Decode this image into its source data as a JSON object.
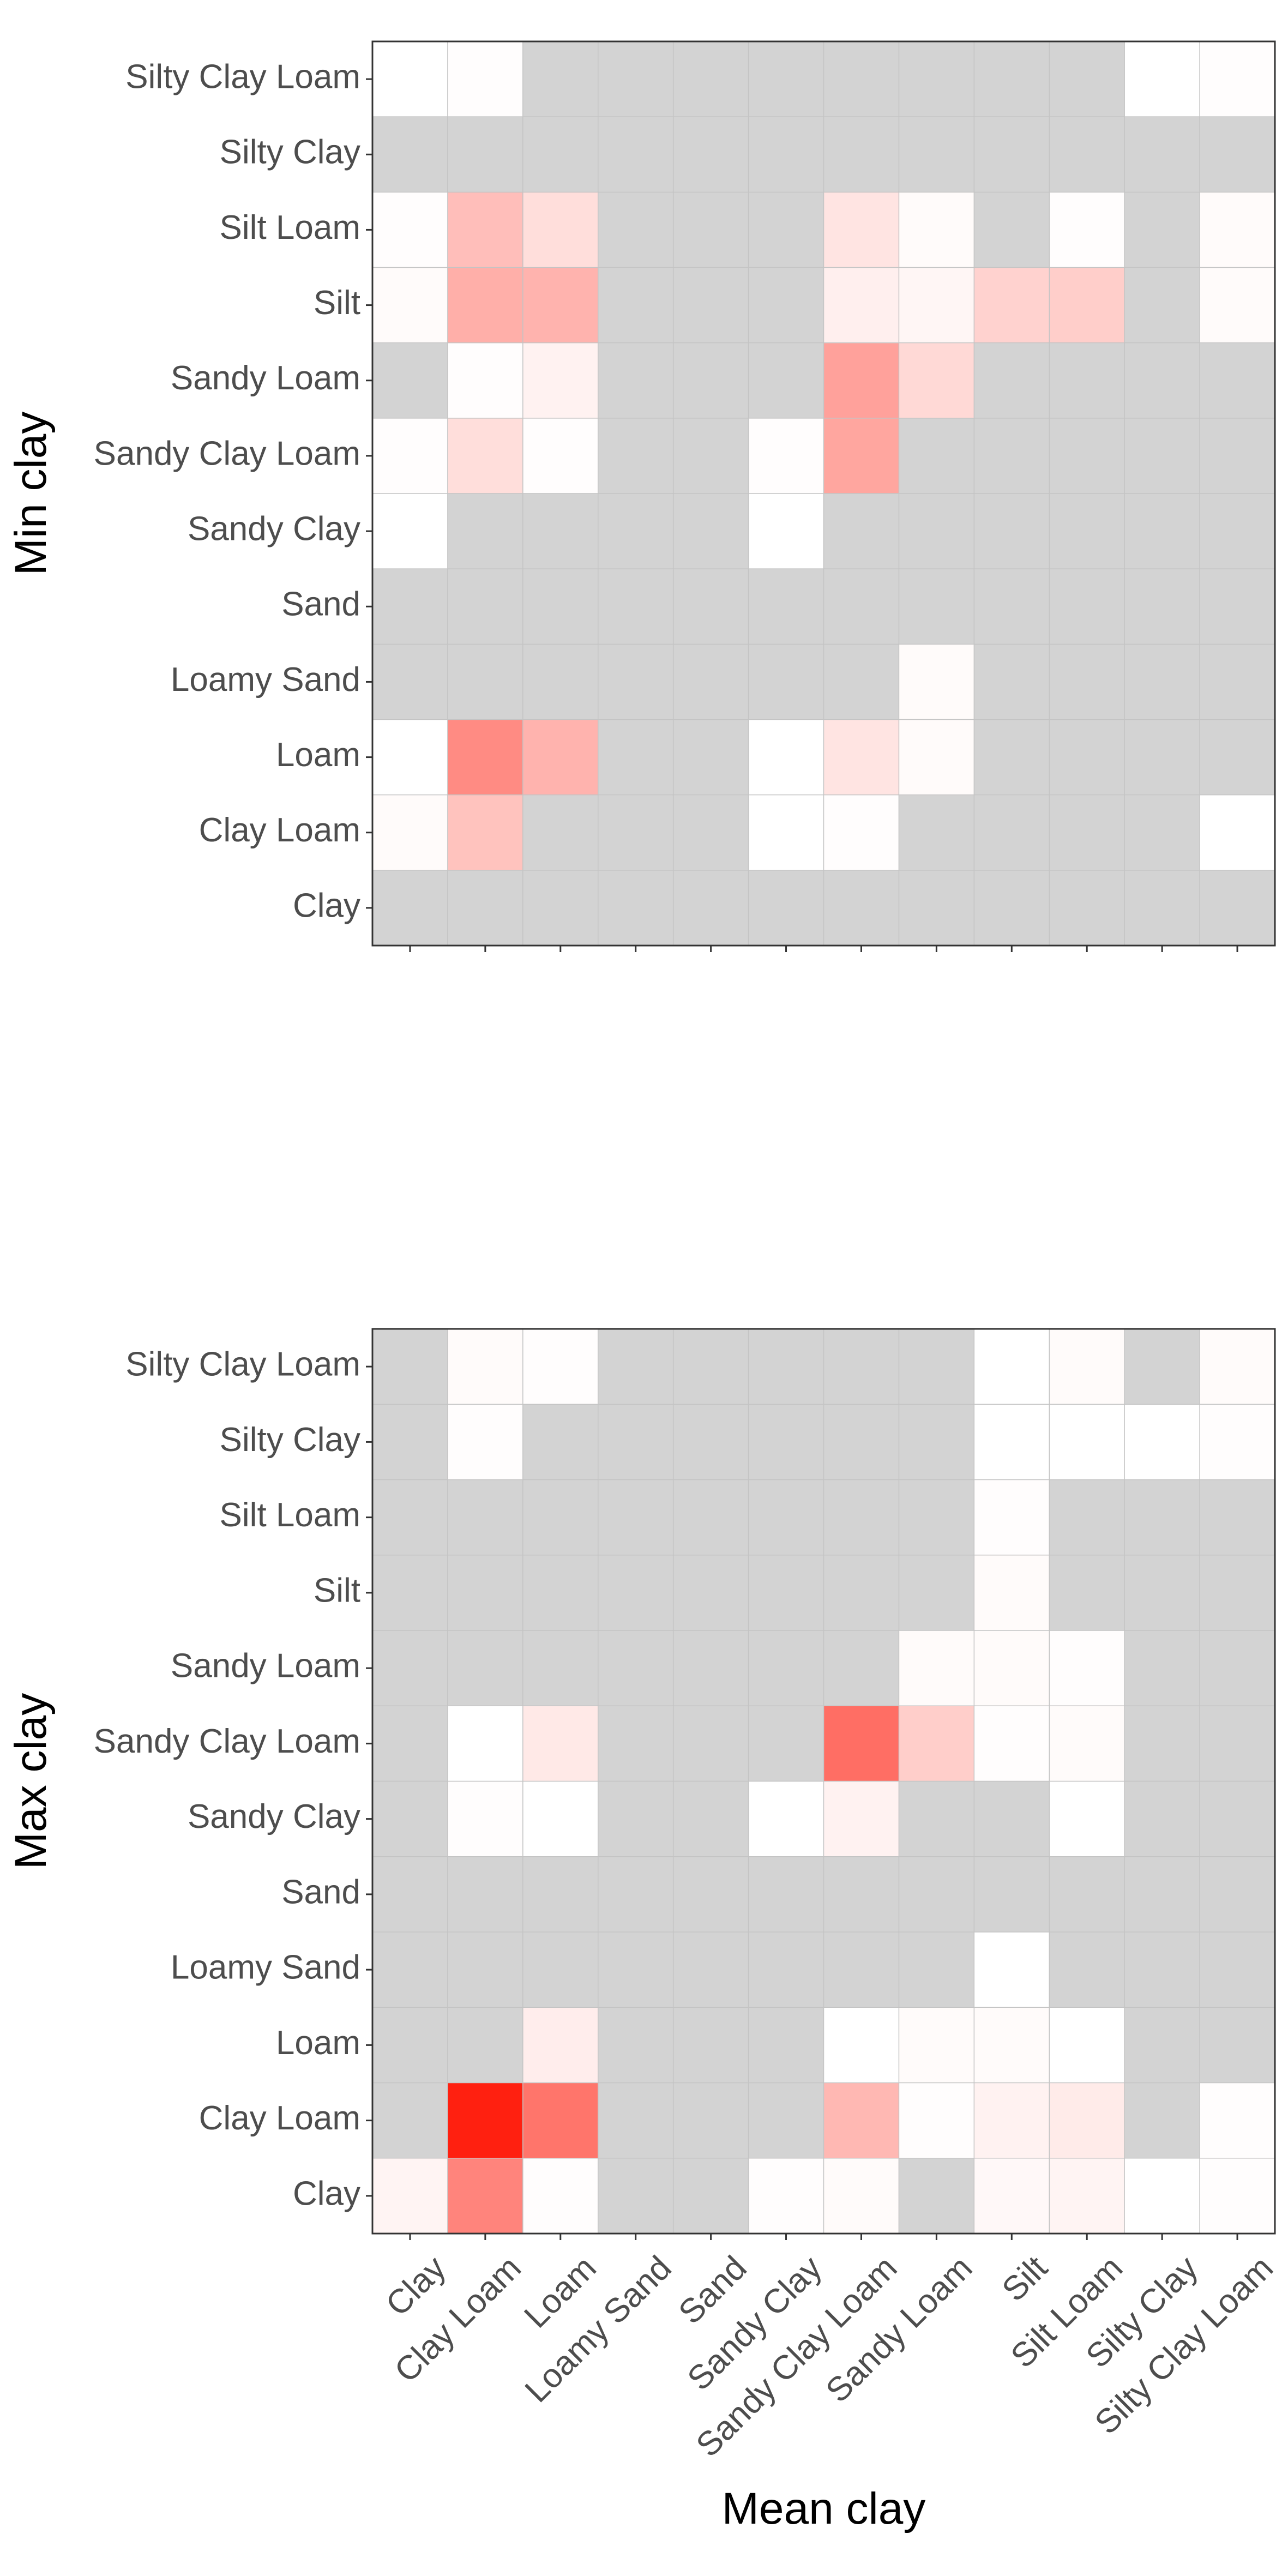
{
  "chart_data": [
    {
      "type": "heatmap",
      "panel": "top",
      "ylabel": "Min clay",
      "xlabel": "",
      "x_categories": [
        "Clay",
        "Clay Loam",
        "Loam",
        "Loamy Sand",
        "Sand",
        "Sandy Clay",
        "Sandy Clay Loam",
        "Sandy Loam",
        "Silt",
        "Silt Loam",
        "Silty Clay",
        "Silty Clay Loam"
      ],
      "y_categories": [
        "Clay",
        "Clay Loam",
        "Loam",
        "Loamy Sand",
        "Sand",
        "Sandy Clay",
        "Sandy Clay Loam",
        "Sandy Loam",
        "Silt",
        "Silt Loam",
        "Silty Clay",
        "Silty Clay Loam"
      ],
      "show_x_tick_labels": false,
      "na_color": "#d3d3d3",
      "low_color": "#ffffff",
      "high_color": "#ff2010",
      "values": [
        [
          null,
          null,
          null,
          null,
          null,
          null,
          null,
          null,
          null,
          null,
          null,
          null
        ],
        [
          0.02,
          0.27,
          null,
          null,
          null,
          0.0,
          0.01,
          null,
          null,
          null,
          null,
          0.0
        ],
        [
          0.0,
          0.52,
          0.34,
          null,
          null,
          0.0,
          0.12,
          0.02,
          null,
          null,
          null,
          null
        ],
        [
          null,
          null,
          null,
          null,
          null,
          null,
          null,
          0.02,
          null,
          null,
          null,
          null
        ],
        [
          null,
          null,
          null,
          null,
          null,
          null,
          null,
          null,
          null,
          null,
          null,
          null
        ],
        [
          0.0,
          null,
          null,
          null,
          null,
          0.0,
          null,
          null,
          null,
          null,
          null,
          null
        ],
        [
          0.01,
          0.15,
          0.01,
          null,
          null,
          0.01,
          0.4,
          null,
          null,
          null,
          null,
          null
        ],
        [
          null,
          0.01,
          0.06,
          null,
          null,
          null,
          0.42,
          0.17,
          null,
          null,
          null,
          null
        ],
        [
          0.02,
          0.36,
          0.34,
          null,
          null,
          null,
          0.07,
          0.04,
          0.2,
          0.22,
          null,
          0.02
        ],
        [
          0.01,
          0.29,
          0.15,
          null,
          null,
          null,
          0.12,
          0.02,
          null,
          0.01,
          null,
          0.02
        ],
        [
          null,
          null,
          null,
          null,
          null,
          null,
          null,
          null,
          null,
          null,
          null,
          null
        ],
        [
          0.0,
          0.01,
          null,
          null,
          null,
          null,
          null,
          null,
          null,
          null,
          0.0,
          0.01
        ]
      ]
    },
    {
      "type": "heatmap",
      "panel": "bottom",
      "ylabel": "Max clay",
      "xlabel": "Mean clay",
      "x_categories": [
        "Clay",
        "Clay Loam",
        "Loam",
        "Loamy Sand",
        "Sand",
        "Sandy Clay",
        "Sandy Clay Loam",
        "Sandy Loam",
        "Silt",
        "Silt Loam",
        "Silty Clay",
        "Silty Clay Loam"
      ],
      "y_categories": [
        "Clay",
        "Clay Loam",
        "Loam",
        "Loamy Sand",
        "Sand",
        "Sandy Clay",
        "Sandy Clay Loam",
        "Sandy Loam",
        "Silt",
        "Silt Loam",
        "Silty Clay",
        "Silty Clay Loam"
      ],
      "show_x_tick_labels": true,
      "na_color": "#d3d3d3",
      "low_color": "#ffffff",
      "high_color": "#ff2010",
      "values": [
        [
          0.05,
          0.55,
          0.01,
          null,
          null,
          0.01,
          0.02,
          null,
          0.03,
          0.05,
          0.0,
          0.01
        ],
        [
          null,
          1.0,
          0.62,
          null,
          null,
          null,
          0.32,
          0.01,
          0.06,
          0.09,
          null,
          0.01
        ],
        [
          null,
          null,
          0.08,
          null,
          null,
          null,
          0.0,
          0.02,
          0.02,
          0.0,
          null,
          null
        ],
        [
          null,
          null,
          null,
          null,
          null,
          null,
          null,
          null,
          0.0,
          null,
          null,
          null
        ],
        [
          null,
          null,
          null,
          null,
          null,
          null,
          null,
          null,
          null,
          null,
          null,
          null
        ],
        [
          null,
          0.01,
          0.0,
          null,
          null,
          0.0,
          0.06,
          null,
          null,
          0.0,
          null,
          null
        ],
        [
          null,
          0.0,
          0.1,
          null,
          null,
          null,
          0.65,
          0.22,
          0.01,
          0.02,
          null,
          null
        ],
        [
          null,
          null,
          null,
          null,
          null,
          null,
          null,
          0.02,
          0.02,
          0.01,
          null,
          null
        ],
        [
          null,
          null,
          null,
          null,
          null,
          null,
          null,
          null,
          0.02,
          null,
          null,
          null
        ],
        [
          null,
          null,
          null,
          null,
          null,
          null,
          null,
          null,
          0.01,
          null,
          null,
          null
        ],
        [
          null,
          0.01,
          null,
          null,
          null,
          null,
          null,
          null,
          0.0,
          0.0,
          0.0,
          0.01
        ],
        [
          null,
          0.02,
          0.01,
          null,
          null,
          null,
          null,
          null,
          0.0,
          0.02,
          null,
          0.02
        ]
      ]
    }
  ]
}
